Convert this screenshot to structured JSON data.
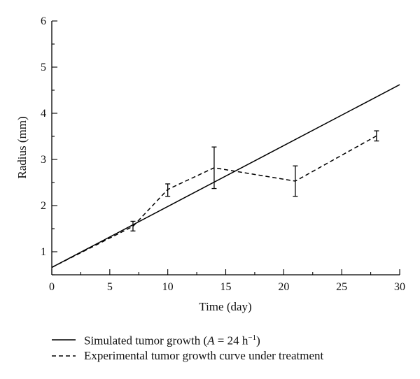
{
  "chart_data": {
    "type": "line",
    "xlabel": "Time (day)",
    "ylabel": "Radius (mm)",
    "xlim": [
      0,
      30
    ],
    "ylim": [
      0.5,
      6
    ],
    "x_ticks": [
      "0",
      "5",
      "10",
      "15",
      "20",
      "25",
      "30"
    ],
    "y_ticks": [
      "1",
      "2",
      "3",
      "4",
      "5",
      "6"
    ],
    "grid": false,
    "legend_position": "bottom",
    "series": [
      {
        "name": "Simulated tumor growth (A = 24 h⁻¹)",
        "style": "solid",
        "x": [
          0,
          30
        ],
        "y": [
          0.66,
          4.62
        ]
      },
      {
        "name": "Experimental tumor growth curve under treatment",
        "style": "dashed",
        "x": [
          0,
          7,
          10,
          14,
          21,
          28
        ],
        "y": [
          0.66,
          1.55,
          2.35,
          2.82,
          2.53,
          3.51
        ],
        "error_low": [
          null,
          1.45,
          2.2,
          2.37,
          2.2,
          3.4
        ],
        "error_high": [
          null,
          1.66,
          2.47,
          3.27,
          2.86,
          3.62
        ]
      }
    ]
  },
  "legend": {
    "solid_label_prefix": "Simulated tumor growth (",
    "solid_label_var": "A",
    "solid_label_suffix": " = 24 h",
    "solid_label_exp": "−1",
    "solid_label_close": ")",
    "dashed_label": "Experimental tumor growth curve under treatment"
  }
}
